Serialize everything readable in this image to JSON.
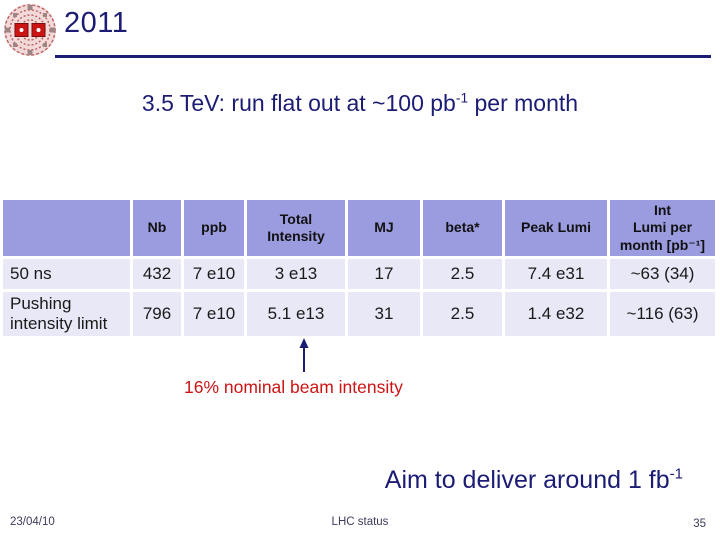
{
  "header": {
    "title": "2011",
    "logo": "lhc-logo"
  },
  "subtitle": {
    "pre": "3.5 TeV: run flat out at ~100 pb",
    "sup": "-1",
    "post": " per month"
  },
  "table": {
    "corner": "",
    "columns": [
      "Nb",
      "ppb",
      "Total\nIntensity",
      "MJ",
      "beta*",
      "Peak Lumi",
      "Int\nLumi per\nmonth [pb⁻¹]"
    ],
    "rows": [
      {
        "label": "50 ns",
        "values": [
          "432",
          "7 e10",
          "3 e13",
          "17",
          "2.5",
          "7.4 e31",
          "~63 (34)"
        ]
      },
      {
        "label": "Pushing intensity limit",
        "values": [
          "796",
          "7 e10",
          "5.1 e13",
          "31",
          "2.5",
          "1.4 e32",
          "~116 (63)"
        ]
      }
    ]
  },
  "callout": {
    "label": "16% nominal beam intensity",
    "arrow": "arrow-up-icon"
  },
  "aim": {
    "pre": "Aim to deliver around 1 fb",
    "sup": "-1"
  },
  "footer": {
    "date": "23/04/10",
    "status": "LHC status",
    "page_number": "35"
  },
  "colors": {
    "navy": "#1c1c75",
    "red": "#cc1414",
    "table_header_bg": "#9b9bdf",
    "table_row_bg": "#e8e8f6",
    "footer_text": "#3c3c5c"
  }
}
